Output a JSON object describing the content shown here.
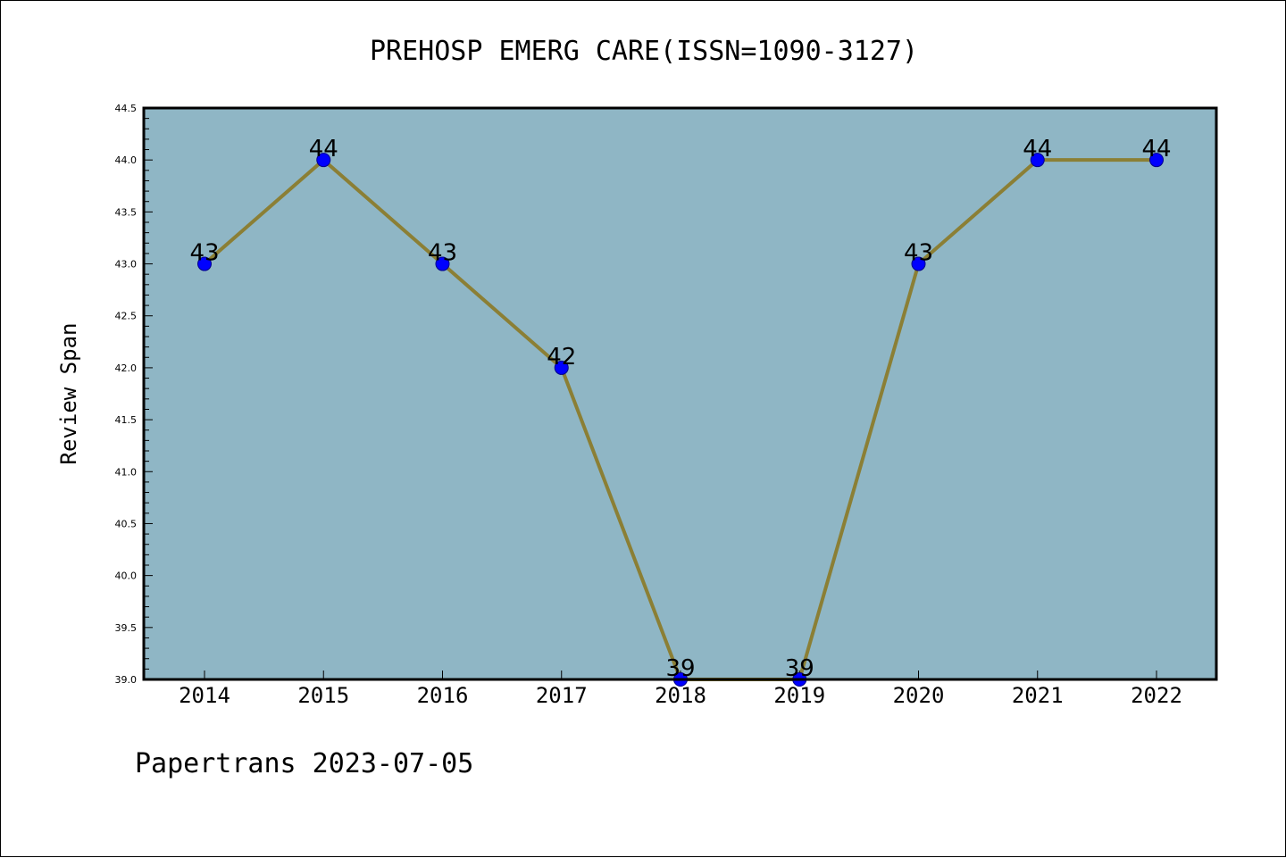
{
  "chart_data": {
    "type": "line",
    "title": "PREHOSP EMERG CARE(ISSN=1090-3127)",
    "xlabel": "",
    "ylabel": "Review Span",
    "categories": [
      "2014",
      "2015",
      "2016",
      "2017",
      "2018",
      "2019",
      "2020",
      "2021",
      "2022"
    ],
    "series": [
      {
        "values": [
          43,
          44,
          43,
          42,
          39,
          39,
          43,
          44,
          44
        ]
      }
    ],
    "data_labels": [
      "43",
      "44",
      "43",
      "42",
      "39",
      "39",
      "43",
      "44",
      "44"
    ],
    "ylim": [
      39.0,
      44.5
    ],
    "yticks": [
      "39.0",
      "39.5",
      "40.0",
      "40.5",
      "41.0",
      "41.5",
      "42.0",
      "42.5",
      "43.0",
      "43.5",
      "44.0",
      "44.5"
    ],
    "grid": false,
    "legend": "none"
  },
  "footer": {
    "text": "Papertrans 2023-07-05"
  },
  "colors": {
    "plot_background": "#8fb6c5",
    "line": "#8b7f35",
    "marker_fill": "#0000ff",
    "marker_edge": "#00008b",
    "frame": "#000000"
  }
}
